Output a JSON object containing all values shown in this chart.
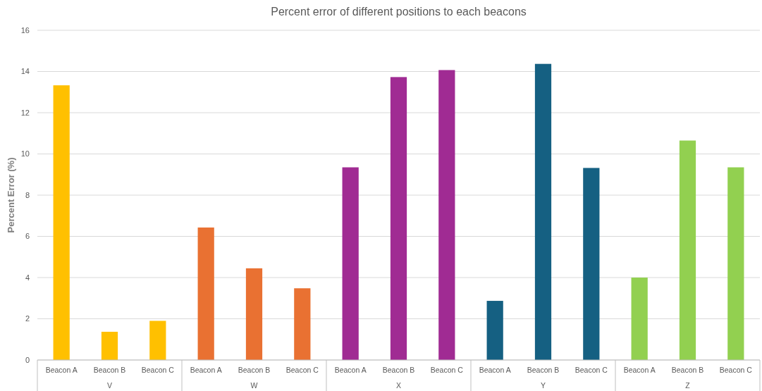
{
  "chart_data": {
    "type": "bar",
    "title": "Percent error of different positions to each beacons",
    "ylabel": "Percent Error (%)",
    "categories": [
      "Beacon A",
      "Beacon B",
      "Beacon C",
      "Beacon A",
      "Beacon B",
      "Beacon C",
      "Beacon A",
      "Beacon B",
      "Beacon C",
      "Beacon A",
      "Beacon B",
      "Beacon C",
      "Beacon A",
      "Beacon B",
      "Beacon C"
    ],
    "values": [
      13.33,
      1.37,
      1.9,
      6.43,
      4.45,
      3.48,
      9.35,
      13.73,
      14.07,
      2.87,
      14.37,
      9.32,
      4.0,
      10.65,
      9.35
    ],
    "colors": [
      "#ffc000",
      "#ffc000",
      "#ffc000",
      "#e97132",
      "#e97132",
      "#e97132",
      "#a02b93",
      "#a02b93",
      "#a02b93",
      "#156082",
      "#156082",
      "#156082",
      "#92d050",
      "#92d050",
      "#92d050"
    ],
    "annotations": [
      "V",
      "W",
      "X",
      "Y",
      "Z"
    ],
    "ylim": [
      0,
      16
    ],
    "yticks": [
      0,
      2,
      4,
      6,
      8,
      10,
      12,
      14,
      16
    ],
    "grid": "y"
  }
}
